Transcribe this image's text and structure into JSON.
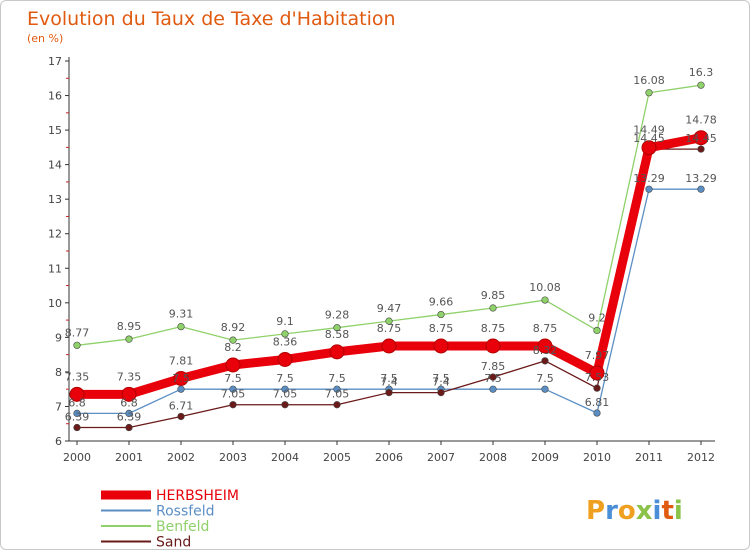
{
  "chart_data": {
    "type": "line",
    "title": "Evolution du Taux de Taxe d'Habitation",
    "subtitle": "(en %)",
    "x": [
      "2000",
      "2001",
      "2002",
      "2003",
      "2004",
      "2005",
      "2006",
      "2007",
      "2008",
      "2009",
      "2010",
      "2011",
      "2012"
    ],
    "ylim": [
      6,
      17
    ],
    "yticks": [
      6,
      7,
      8,
      9,
      10,
      11,
      12,
      13,
      14,
      15,
      16,
      17
    ],
    "grid": false,
    "legend_position": "bottom-left",
    "series": [
      {
        "name": "HERBSHEIM",
        "color": "#e8000b",
        "values": [
          7.35,
          7.35,
          7.81,
          8.2,
          8.36,
          8.58,
          8.75,
          8.75,
          8.75,
          8.75,
          7.97,
          14.49,
          14.78
        ]
      },
      {
        "name": "Rossfeld",
        "color": "#5b8fc4",
        "values": [
          6.8,
          6.8,
          7.5,
          7.5,
          7.5,
          7.5,
          7.5,
          7.5,
          7.5,
          7.5,
          6.81,
          13.29,
          13.29
        ]
      },
      {
        "name": "Benfeld",
        "color": "#8fd16a",
        "values": [
          8.77,
          8.95,
          9.31,
          8.92,
          9.1,
          9.28,
          9.47,
          9.66,
          9.85,
          10.08,
          9.2,
          16.08,
          16.3
        ]
      },
      {
        "name": "Sand",
        "color": "#6b1a1a",
        "values": [
          6.39,
          6.39,
          6.71,
          7.05,
          7.05,
          7.05,
          7.4,
          7.4,
          7.85,
          8.32,
          7.53,
          14.45,
          14.45
        ]
      }
    ]
  },
  "logo": {
    "text": "Proxiti"
  }
}
